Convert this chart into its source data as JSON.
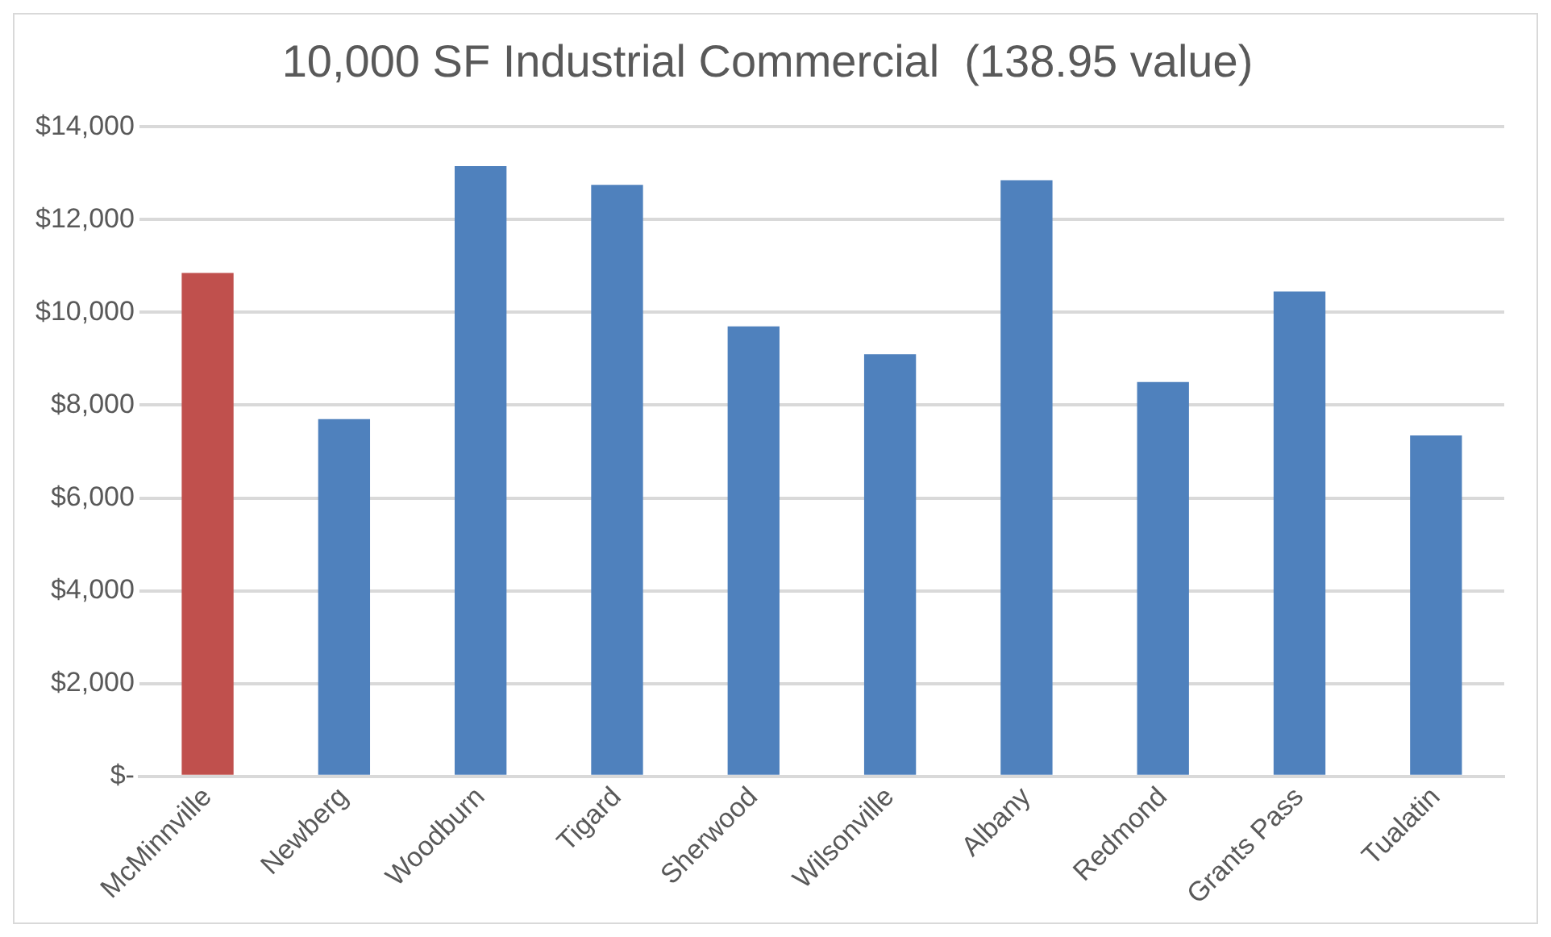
{
  "chart_data": {
    "type": "bar",
    "title": "10,000 SF Industrial Commercial  (138.95 value)",
    "categories": [
      "McMinnville",
      "Newberg",
      "Woodburn",
      "Tigard",
      "Sherwood",
      "Wilsonville",
      "Albany",
      "Redmond",
      "Grants Pass",
      "Tualatin"
    ],
    "values": [
      10850,
      7700,
      13150,
      12750,
      9700,
      9100,
      12850,
      8500,
      10450,
      7350
    ],
    "colors": [
      "#c0504d",
      "#4f81bd",
      "#4f81bd",
      "#4f81bd",
      "#4f81bd",
      "#4f81bd",
      "#4f81bd",
      "#4f81bd",
      "#4f81bd",
      "#4f81bd"
    ],
    "ylim": [
      0,
      14000
    ],
    "yticks": [
      {
        "value": 0,
        "label": "$-"
      },
      {
        "value": 2000,
        "label": "$2,000"
      },
      {
        "value": 4000,
        "label": "$4,000"
      },
      {
        "value": 6000,
        "label": "$6,000"
      },
      {
        "value": 8000,
        "label": "$8,000"
      },
      {
        "value": 10000,
        "label": "$10,000"
      },
      {
        "value": 12000,
        "label": "$12,000"
      },
      {
        "value": 14000,
        "label": "$14,000"
      }
    ],
    "grid": "y",
    "legend": false
  }
}
